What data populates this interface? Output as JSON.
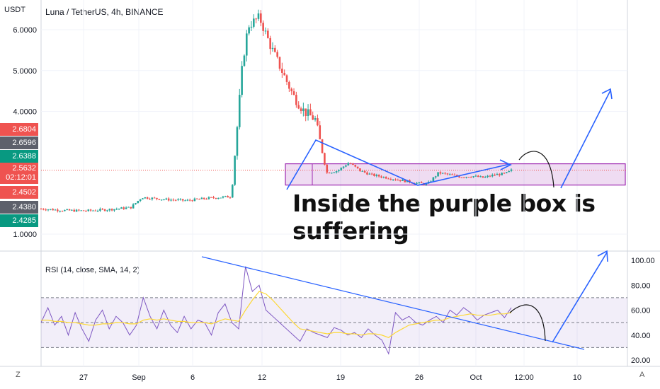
{
  "chart_data": {
    "type": "candlestick",
    "title": "Luna / TetherUS, 4h, BINANCE",
    "unit_label": "USDT",
    "annotation": "Inside the purple box is suffering",
    "x_labels": [
      "27",
      "Sep",
      "6",
      "12",
      "19",
      "26",
      "Oct",
      "12:00",
      "10"
    ],
    "price_axis": {
      "ticks": [
        "6.0000",
        "5.0000",
        "4.0000",
        "1.0000"
      ],
      "tick_values": [
        6.0,
        5.0,
        4.0,
        1.0
      ],
      "labels": [
        {
          "text": "2.6804",
          "color": "#ef5350"
        },
        {
          "text": "2.6596",
          "color": "#5d606b"
        },
        {
          "text": "2.6388",
          "color": "#089981"
        },
        {
          "text": "2.5632",
          "time": "02:12:01",
          "color": "#ef5350"
        },
        {
          "text": "2.4502",
          "color": "#ef5350"
        },
        {
          "text": "2.4380",
          "color": "#5d606b"
        },
        {
          "text": "2.4285",
          "color": "#089981"
        }
      ]
    },
    "box": {
      "top_value": 2.72,
      "bottom_value": 2.2,
      "color": "#9c27b0"
    },
    "current_price": 2.5632,
    "price_path": [
      [
        0,
        1.62
      ],
      [
        4,
        1.58
      ],
      [
        8,
        1.57
      ],
      [
        12,
        1.6
      ],
      [
        16,
        1.65
      ],
      [
        18,
        1.9
      ],
      [
        22,
        1.85
      ],
      [
        26,
        1.82
      ],
      [
        30,
        1.88
      ],
      [
        34,
        1.92
      ],
      [
        36,
        5.2
      ],
      [
        37,
        6.1
      ],
      [
        39,
        6.3
      ],
      [
        41,
        5.6
      ],
      [
        43,
        5.0
      ],
      [
        45,
        4.4
      ],
      [
        47,
        4.0
      ],
      [
        49,
        3.8
      ],
      [
        51,
        2.5
      ],
      [
        53,
        2.55
      ],
      [
        55,
        2.75
      ],
      [
        57,
        2.55
      ],
      [
        59,
        2.45
      ],
      [
        61,
        2.4
      ],
      [
        63,
        2.35
      ],
      [
        65,
        2.3
      ],
      [
        67,
        2.25
      ],
      [
        69,
        2.22
      ],
      [
        71,
        2.5
      ],
      [
        73,
        2.45
      ],
      [
        75,
        2.4
      ],
      [
        77,
        2.42
      ],
      [
        79,
        2.38
      ],
      [
        81,
        2.45
      ],
      [
        83,
        2.48
      ],
      [
        84,
        2.56
      ]
    ],
    "rsi": {
      "label": "RSI (14, close, SMA, 14, 2)",
      "ticks": [
        "100.00",
        "80.00",
        "60.00",
        "40.00",
        "20.00"
      ],
      "tick_values": [
        100,
        80,
        60,
        40,
        20
      ],
      "upper": 70,
      "middle": 50,
      "lower": 30,
      "values": [
        50,
        62,
        48,
        55,
        40,
        58,
        45,
        35,
        52,
        60,
        45,
        55,
        50,
        40,
        48,
        70,
        55,
        45,
        60,
        48,
        42,
        55,
        45,
        52,
        50,
        40,
        58,
        65,
        50,
        45,
        95,
        75,
        80,
        60,
        55,
        50,
        45,
        40,
        35,
        45,
        42,
        40,
        38,
        46,
        44,
        40,
        42,
        38,
        45,
        40,
        36,
        25,
        58,
        52,
        55,
        50,
        48,
        52,
        55,
        50,
        60,
        56,
        62,
        58,
        52,
        56,
        58,
        60,
        54,
        62
      ],
      "sma": [
        52,
        52,
        51,
        51,
        50,
        50,
        49,
        48,
        48,
        49,
        49,
        50,
        50,
        49,
        49,
        52,
        53,
        52,
        53,
        52,
        51,
        51,
        50,
        50,
        50,
        49,
        51,
        53,
        52,
        51,
        60,
        68,
        75,
        73,
        68,
        62,
        56,
        50,
        45,
        44,
        43,
        42,
        41,
        42,
        42,
        41,
        41,
        40,
        41,
        41,
        40,
        38,
        42,
        45,
        48,
        49,
        50,
        51,
        52,
        52,
        54,
        55,
        56,
        57,
        56,
        56,
        56,
        57,
        57,
        58
      ]
    },
    "grid": true
  }
}
